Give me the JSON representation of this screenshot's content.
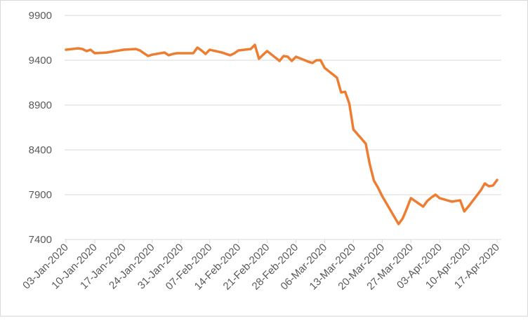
{
  "chart_data": {
    "type": "line",
    "x": [
      "03-Jan-2020",
      "06-Jan-2020",
      "07-Jan-2020",
      "08-Jan-2020",
      "09-Jan-2020",
      "10-Jan-2020",
      "13-Jan-2020",
      "14-Jan-2020",
      "15-Jan-2020",
      "16-Jan-2020",
      "17-Jan-2020",
      "20-Jan-2020",
      "21-Jan-2020",
      "22-Jan-2020",
      "23-Jan-2020",
      "24-Jan-2020",
      "27-Jan-2020",
      "28-Jan-2020",
      "29-Jan-2020",
      "30-Jan-2020",
      "31-Jan-2020",
      "03-Feb-2020",
      "04-Feb-2020",
      "05-Feb-2020",
      "06-Feb-2020",
      "07-Feb-2020",
      "10-Feb-2020",
      "11-Feb-2020",
      "12-Feb-2020",
      "13-Feb-2020",
      "14-Feb-2020",
      "17-Feb-2020",
      "18-Feb-2020",
      "19-Feb-2020",
      "20-Feb-2020",
      "21-Feb-2020",
      "24-Feb-2020",
      "25-Feb-2020",
      "26-Feb-2020",
      "27-Feb-2020",
      "28-Feb-2020",
      "02-Mar-2020",
      "03-Mar-2020",
      "04-Mar-2020",
      "05-Mar-2020",
      "06-Mar-2020",
      "09-Mar-2020",
      "10-Mar-2020",
      "11-Mar-2020",
      "12-Mar-2020",
      "13-Mar-2020",
      "16-Mar-2020",
      "17-Mar-2020",
      "18-Mar-2020",
      "19-Mar-2020",
      "20-Mar-2020",
      "23-Mar-2020",
      "24-Mar-2020",
      "25-Mar-2020",
      "26-Mar-2020",
      "27-Mar-2020",
      "30-Mar-2020",
      "31-Mar-2020",
      "01-Apr-2020",
      "02-Apr-2020",
      "03-Apr-2020",
      "06-Apr-2020",
      "07-Apr-2020",
      "08-Apr-2020",
      "09-Apr-2020",
      "10-Apr-2020",
      "13-Apr-2020",
      "14-Apr-2020",
      "15-Apr-2020",
      "16-Apr-2020",
      "17-Apr-2020"
    ],
    "series": [
      {
        "color": "#ed7d31",
        "values": [
          9517,
          9533,
          9525,
          9502,
          9517,
          9478,
          9486,
          9494,
          9502,
          9509,
          9517,
          9525,
          9509,
          9478,
          9447,
          9462,
          9486,
          9455,
          9470,
          9478,
          9478,
          9478,
          9541,
          9509,
          9470,
          9517,
          9486,
          9470,
          9455,
          9478,
          9509,
          9525,
          9572,
          9416,
          9462,
          9502,
          9392,
          9447,
          9439,
          9392,
          9439,
          9384,
          9369,
          9400,
          9400,
          9314,
          9205,
          9041,
          9048,
          8916,
          8627,
          8470,
          8236,
          8056,
          7978,
          7884,
          7650,
          7572,
          7634,
          7744,
          7861,
          7767,
          7830,
          7869,
          7900,
          7861,
          7822,
          7830,
          7837,
          7713,
          7767,
          7947,
          8025,
          7994,
          8002,
          8064
        ]
      }
    ],
    "xticks": [
      "03-Jan-2020",
      "10-Jan-2020",
      "17-Jan-2020",
      "24-Jan-2020",
      "31-Jan-2020",
      "07-Feb-2020",
      "14-Feb-2020",
      "21-Feb-2020",
      "28-Feb-2020",
      "06-Mar-2020",
      "13-Mar-2020",
      "20-Mar-2020",
      "27-Mar-2020",
      "03-Apr-2020",
      "10-Apr-2020",
      "17-Apr-2020"
    ],
    "xlim": [
      "03-Jan-2020",
      "17-Apr-2020"
    ],
    "ylim": [
      7400,
      9900
    ],
    "yticks": [
      7400,
      7900,
      8400,
      8900,
      9400,
      9900
    ],
    "grid": true
  }
}
